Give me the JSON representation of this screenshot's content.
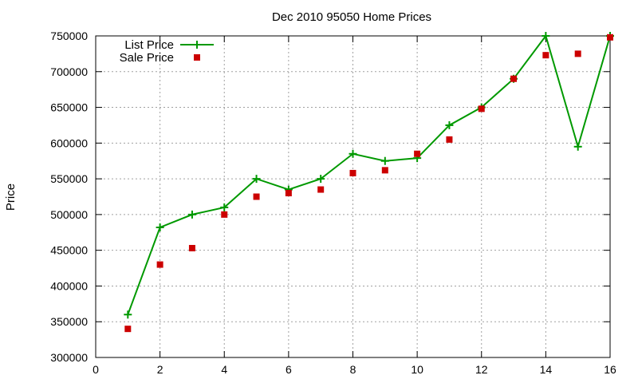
{
  "chart_data": {
    "type": "line",
    "title": "Dec 2010 95050 Home Prices",
    "xlabel": "",
    "ylabel": "Price",
    "xlim": [
      0,
      16
    ],
    "ylim": [
      300000,
      750000
    ],
    "x_ticks": [
      0,
      2,
      4,
      6,
      8,
      10,
      12,
      14,
      16
    ],
    "x_tick_labels": [
      "0",
      "2",
      "4",
      "6",
      "8",
      "10",
      "12",
      "14",
      "16"
    ],
    "y_ticks": [
      300000,
      350000,
      400000,
      450000,
      500000,
      550000,
      600000,
      650000,
      700000,
      750000
    ],
    "y_tick_labels": [
      "300000",
      "350000",
      "400000",
      "450000",
      "500000",
      "550000",
      "600000",
      "650000",
      "700000",
      "750000"
    ],
    "grid": true,
    "legend_position": "top-left",
    "series": [
      {
        "name": "List Price",
        "style": "lines-points",
        "marker": "plus",
        "color": "#009900",
        "x": [
          1,
          2,
          3,
          4,
          5,
          6,
          7,
          8,
          9,
          10,
          11,
          12,
          13,
          14,
          15,
          16
        ],
        "y": [
          360000,
          482000,
          500000,
          510000,
          550000,
          535000,
          550000,
          585000,
          575000,
          579000,
          625000,
          650000,
          690000,
          750000,
          595000,
          750000
        ]
      },
      {
        "name": "Sale Price",
        "style": "points",
        "marker": "square",
        "color": "#cc0000",
        "x": [
          1,
          2,
          3,
          4,
          5,
          6,
          7,
          8,
          9,
          10,
          11,
          12,
          13,
          14,
          15,
          16
        ],
        "y": [
          340000,
          430000,
          453000,
          500000,
          525000,
          530000,
          535000,
          558000,
          562000,
          585000,
          605000,
          648000,
          690000,
          723000,
          725000,
          748000
        ]
      }
    ]
  }
}
